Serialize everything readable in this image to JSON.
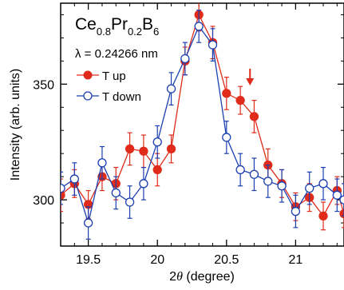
{
  "chart_data": {
    "type": "scatter",
    "compound": {
      "base1": "Ce",
      "sub1": "0.8",
      "base2": "Pr",
      "sub2": "0.2",
      "base3": "B",
      "sub3": "6"
    },
    "wavelength_label": "λ = 0.24266 nm",
    "xlabel_prefix": "2",
    "xlabel_theta": "θ",
    "xlabel_unit": " (degree)",
    "ylabel": "Intensity (arb. units)",
    "xlim": [
      19.3,
      21.35
    ],
    "ylim": [
      280,
      385
    ],
    "x_ticks": [
      19.5,
      20,
      20.5,
      21
    ],
    "x_tick_labels": [
      "19.5",
      "20",
      "20.5",
      "21"
    ],
    "y_ticks": [
      300,
      350
    ],
    "y_tick_labels": [
      "300",
      "350"
    ],
    "arrow_at_x": 20.67,
    "series": [
      {
        "name": "T up",
        "color": "#e02a1a",
        "marker": "filled-circle",
        "x": [
          19.3,
          19.4,
          19.5,
          19.6,
          19.7,
          19.8,
          19.9,
          20.0,
          20.1,
          20.2,
          20.3,
          20.4,
          20.5,
          20.6,
          20.7,
          20.8,
          20.9,
          21.0,
          21.1,
          21.2,
          21.3,
          21.35
        ],
        "y": [
          302,
          307,
          298,
          310,
          307,
          322,
          321,
          313,
          322,
          360,
          380,
          368,
          346,
          343,
          336,
          315,
          307,
          297,
          301,
          293,
          304,
          294
        ],
        "err": [
          7,
          6,
          6,
          6,
          7,
          7,
          7,
          7,
          6,
          6,
          7,
          7,
          7,
          6,
          7,
          7,
          6,
          6,
          6,
          6,
          6,
          6
        ]
      },
      {
        "name": "T down",
        "color": "#1a3fb0",
        "marker": "open-circle",
        "x": [
          19.3,
          19.4,
          19.5,
          19.6,
          19.7,
          19.8,
          19.9,
          20.0,
          20.1,
          20.2,
          20.3,
          20.4,
          20.5,
          20.6,
          20.7,
          20.8,
          20.9,
          21.0,
          21.1,
          21.2,
          21.3,
          21.35
        ],
        "y": [
          305,
          309,
          290,
          316,
          303,
          299,
          307,
          325,
          348,
          361,
          375,
          367,
          327,
          313,
          311,
          308,
          306,
          295,
          305,
          307,
          302,
          300
        ],
        "err": [
          7,
          7,
          7,
          7,
          7,
          7,
          7,
          7,
          7,
          7,
          7,
          7,
          7,
          7,
          7,
          7,
          7,
          7,
          7,
          7,
          7,
          7
        ]
      }
    ]
  }
}
